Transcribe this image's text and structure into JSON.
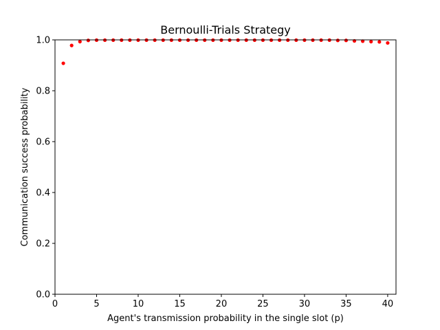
{
  "chart_data": {
    "type": "scatter",
    "title": "Bernoulli-Trials Strategy",
    "xlabel": "Agent's transmission probability in the single slot (p)",
    "ylabel": "Communication success probability",
    "xlim": [
      0,
      41
    ],
    "ylim": [
      0,
      1.0
    ],
    "xticks": [
      0,
      5,
      10,
      15,
      20,
      25,
      30,
      35,
      40
    ],
    "yticks": [
      0.0,
      0.2,
      0.4,
      0.6,
      0.8,
      1.0
    ],
    "xtick_labels": [
      "0",
      "5",
      "10",
      "15",
      "20",
      "25",
      "30",
      "35",
      "40"
    ],
    "ytick_labels": [
      "0.0",
      "0.2",
      "0.4",
      "0.6",
      "0.8",
      "1.0"
    ],
    "grid": false,
    "marker_color": "#ff0000",
    "series": [
      {
        "x": [
          1,
          2,
          3,
          4,
          5,
          6,
          7,
          8,
          9,
          10,
          11,
          12,
          13,
          14,
          15,
          16,
          17,
          18,
          19,
          20,
          21,
          22,
          23,
          24,
          25,
          26,
          27,
          28,
          29,
          30,
          31,
          32,
          33,
          34,
          35,
          36,
          37,
          38,
          39,
          40
        ],
        "y": [
          0.908,
          0.978,
          0.993,
          0.998,
          0.999,
          0.999,
          0.999,
          0.999,
          0.999,
          0.999,
          0.999,
          0.999,
          0.999,
          0.999,
          0.999,
          0.999,
          0.999,
          0.999,
          0.999,
          0.999,
          0.999,
          0.999,
          0.999,
          0.999,
          0.999,
          0.999,
          0.999,
          0.999,
          0.999,
          0.999,
          0.999,
          0.999,
          0.999,
          0.998,
          0.998,
          0.996,
          0.995,
          0.993,
          0.992,
          0.988
        ]
      }
    ]
  }
}
